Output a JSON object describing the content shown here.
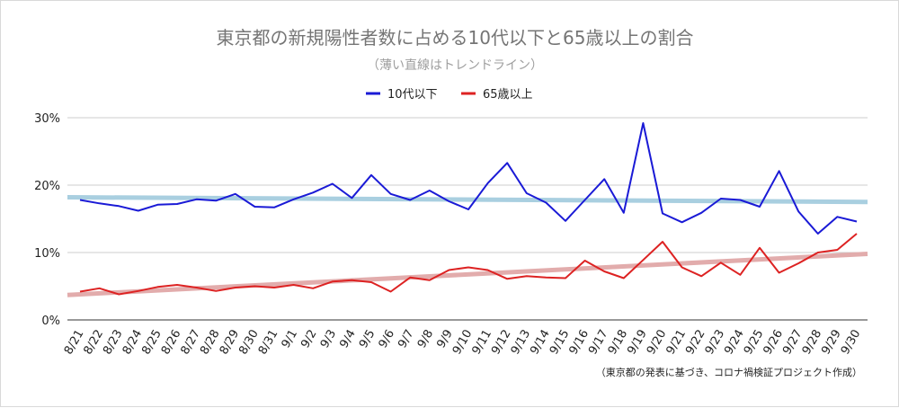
{
  "chart_data": {
    "type": "line",
    "title": "東京都の新規陽性者数に占める10代以下と65歳以上の割合",
    "subtitle": "（薄い直線はトレンドライン）",
    "source_note": "（東京都の発表に基づき、コロナ禍検証プロジェクト作成）",
    "categories": [
      "8/21",
      "8/22",
      "8/23",
      "8/24",
      "8/25",
      "8/26",
      "8/27",
      "8/28",
      "8/29",
      "8/30",
      "8/31",
      "9/1",
      "9/2",
      "9/3",
      "9/4",
      "9/5",
      "9/6",
      "9/7",
      "9/8",
      "9/9",
      "9/10",
      "9/11",
      "9/12",
      "9/13",
      "9/14",
      "9/15",
      "9/16",
      "9/17",
      "9/18",
      "9/19",
      "9/20",
      "9/21",
      "9/22",
      "9/23",
      "9/24",
      "9/25",
      "9/26",
      "9/27",
      "9/28",
      "9/29",
      "9/30"
    ],
    "y_ticks": [
      "0%",
      "10%",
      "20%",
      "30%"
    ],
    "ylim": [
      0,
      30
    ],
    "grid": true,
    "legend_position": "top",
    "series": [
      {
        "name": "10代以下",
        "color": "#1a1ad6",
        "values": [
          17.8,
          17.3,
          16.9,
          16.2,
          17.1,
          17.2,
          17.9,
          17.7,
          18.7,
          16.8,
          16.7,
          17.9,
          18.9,
          20.2,
          18.1,
          21.5,
          18.7,
          17.8,
          19.2,
          17.6,
          16.4,
          20.3,
          23.3,
          18.8,
          17.4,
          14.7,
          17.8,
          20.9,
          15.9,
          29.2,
          15.8,
          14.5,
          15.9,
          18.0,
          17.8,
          16.8,
          22.1,
          16.1,
          12.8,
          15.3,
          14.6
        ]
      },
      {
        "name": "65歳以上",
        "color": "#dd2222",
        "values": [
          4.2,
          4.7,
          3.8,
          4.3,
          4.9,
          5.2,
          4.8,
          4.3,
          4.8,
          5.0,
          4.8,
          5.2,
          4.7,
          5.7,
          5.9,
          5.6,
          4.2,
          6.3,
          5.9,
          7.4,
          7.8,
          7.4,
          6.1,
          6.5,
          6.3,
          6.2,
          8.8,
          7.2,
          6.2,
          8.9,
          11.6,
          7.8,
          6.5,
          8.5,
          6.7,
          10.7,
          7.0,
          8.4,
          10.0,
          10.4,
          12.8
        ]
      }
    ],
    "trendlines": [
      {
        "series": "10代以下",
        "color": "#a9cfe0",
        "start": 18.2,
        "end": 17.5
      },
      {
        "series": "65歳以上",
        "color": "#e2acac",
        "start": 3.7,
        "end": 9.8
      }
    ]
  }
}
